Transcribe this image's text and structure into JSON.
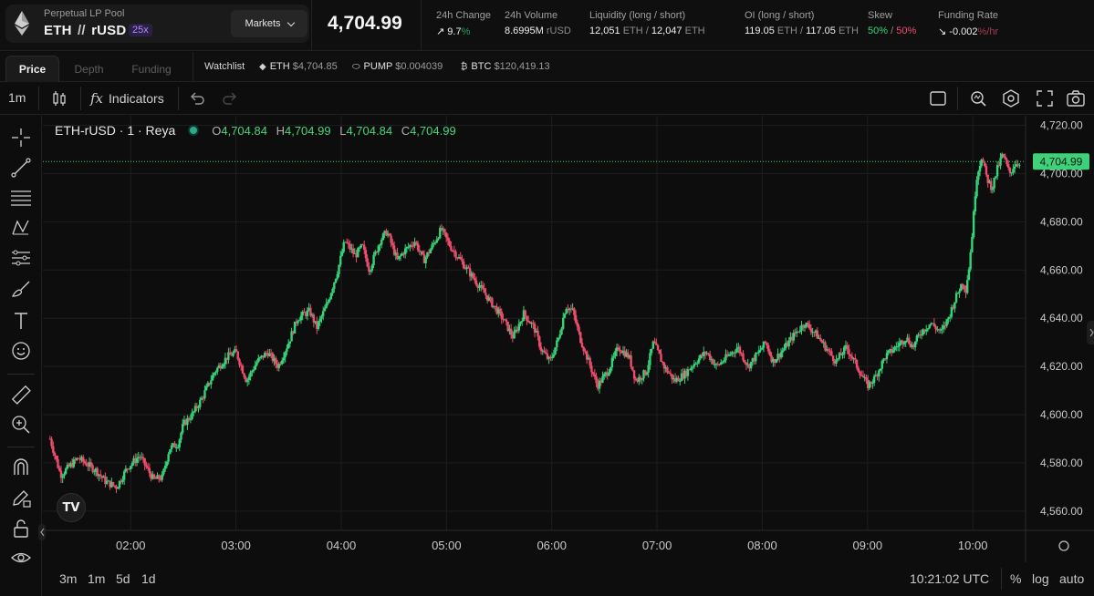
{
  "header": {
    "pool_label": "Perpetual LP Pool",
    "base": "ETH",
    "separator": "//",
    "quote": "rUSD",
    "leverage": "25x",
    "markets_label": "Markets",
    "last_price": "4,704.99",
    "stats": {
      "change_label": "24h Change",
      "change_arrow": "↗",
      "change_value": "9.7",
      "change_unit": "%",
      "volume_label": "24h Volume",
      "volume_value": "8.6995M",
      "volume_unit": "rUSD",
      "liquidity_label": "Liquidity (long / short)",
      "liquidity_long": "12,051",
      "liquidity_long_unit": "ETH",
      "liquidity_sep": "/",
      "liquidity_short": "12,047",
      "liquidity_short_unit": "ETH",
      "oi_label": "OI (long / short)",
      "oi_long": "119.05",
      "oi_long_unit": "ETH",
      "oi_sep": "/",
      "oi_short": "117.05",
      "oi_short_unit": "ETH",
      "skew_label": "Skew",
      "skew_long": "50%",
      "skew_sep": "/",
      "skew_short": "50%",
      "funding_label": "Funding Rate",
      "funding_arrow": "↘",
      "funding_value": "-0.002",
      "funding_unit": "%/hr"
    }
  },
  "tabs": [
    "Price",
    "Depth",
    "Funding"
  ],
  "watchlist": {
    "title": "Watchlist",
    "items": [
      {
        "symbol": "ETH",
        "price": "$4,704.85"
      },
      {
        "symbol": "PUMP",
        "price": "$0.004039"
      },
      {
        "symbol": "BTC",
        "price": "$120,419.13"
      }
    ]
  },
  "toolbar": {
    "interval": "1m",
    "indicators_label": "Indicators",
    "fx_label": "fx"
  },
  "chart_legend": {
    "title": "ETH-rUSD · 1 · Reya",
    "open_key": "O",
    "open": "4,704.84",
    "high_key": "H",
    "high": "4,704.99",
    "low_key": "L",
    "low": "4,704.84",
    "close_key": "C",
    "close": "4,704.99"
  },
  "tv_logo": "TV",
  "bottom_bar": {
    "ranges": [
      "3m",
      "1m",
      "5d",
      "1d"
    ],
    "time_utc": "10:21:02 UTC",
    "percent": "%",
    "log": "log",
    "auto": "auto"
  },
  "colors": {
    "up": "#34d47a",
    "down": "#ef4d6d",
    "price_line": "#3fd17a",
    "price_tag_bg": "#3fd17a",
    "accent_purple": "#b48cff"
  },
  "chart_data": {
    "type": "candlestick",
    "symbol": "ETH-rUSD",
    "interval": "1",
    "ylim": [
      4552,
      4724
    ],
    "y_ticks": [
      4560,
      4580,
      4600,
      4620,
      4640,
      4660,
      4680,
      4700,
      4720
    ],
    "y_tick_labels": [
      "4,560.00",
      "4,580.00",
      "4,600.00",
      "4,620.00",
      "4,640.00",
      "4,660.00",
      "4,680.00",
      "4,700.00",
      "4,720.00"
    ],
    "x_tick_labels": [
      "02:00",
      "03:00",
      "04:00",
      "05:00",
      "06:00",
      "07:00",
      "08:00",
      "09:00",
      "10:00"
    ],
    "x_tick_minutes": [
      120,
      180,
      240,
      300,
      360,
      420,
      480,
      540,
      600
    ],
    "x_range_minutes": [
      72,
      628
    ],
    "current_price": 4704.99,
    "current_price_label": "4,704.99",
    "close_path": [
      [
        74,
        4590
      ],
      [
        80,
        4575
      ],
      [
        90,
        4582
      ],
      [
        100,
        4577
      ],
      [
        106,
        4572
      ],
      [
        112,
        4570
      ],
      [
        118,
        4578
      ],
      [
        125,
        4583
      ],
      [
        133,
        4573
      ],
      [
        138,
        4574
      ],
      [
        142,
        4586
      ],
      [
        147,
        4588
      ],
      [
        150,
        4596
      ],
      [
        155,
        4600
      ],
      [
        160,
        4606
      ],
      [
        168,
        4618
      ],
      [
        175,
        4624
      ],
      [
        180,
        4626
      ],
      [
        186,
        4614
      ],
      [
        192,
        4622
      ],
      [
        198,
        4626
      ],
      [
        204,
        4620
      ],
      [
        210,
        4630
      ],
      [
        215,
        4640
      ],
      [
        222,
        4643
      ],
      [
        226,
        4636
      ],
      [
        232,
        4646
      ],
      [
        238,
        4660
      ],
      [
        242,
        4672
      ],
      [
        248,
        4666
      ],
      [
        252,
        4670
      ],
      [
        256,
        4660
      ],
      [
        262,
        4672
      ],
      [
        266,
        4676
      ],
      [
        272,
        4664
      ],
      [
        276,
        4668
      ],
      [
        282,
        4672
      ],
      [
        287,
        4664
      ],
      [
        292,
        4670
      ],
      [
        297,
        4677
      ],
      [
        302,
        4670
      ],
      [
        308,
        4664
      ],
      [
        314,
        4658
      ],
      [
        320,
        4652
      ],
      [
        326,
        4646
      ],
      [
        332,
        4640
      ],
      [
        338,
        4632
      ],
      [
        344,
        4642
      ],
      [
        350,
        4636
      ],
      [
        354,
        4627
      ],
      [
        359,
        4622
      ],
      [
        364,
        4632
      ],
      [
        368,
        4645
      ],
      [
        372,
        4643
      ],
      [
        376,
        4632
      ],
      [
        381,
        4622
      ],
      [
        386,
        4612
      ],
      [
        392,
        4618
      ],
      [
        398,
        4628
      ],
      [
        404,
        4624
      ],
      [
        408,
        4614
      ],
      [
        414,
        4618
      ],
      [
        418,
        4630
      ],
      [
        424,
        4620
      ],
      [
        430,
        4614
      ],
      [
        436,
        4617
      ],
      [
        442,
        4622
      ],
      [
        448,
        4626
      ],
      [
        454,
        4620
      ],
      [
        460,
        4624
      ],
      [
        466,
        4628
      ],
      [
        472,
        4620
      ],
      [
        478,
        4626
      ],
      [
        482,
        4630
      ],
      [
        486,
        4622
      ],
      [
        492,
        4627
      ],
      [
        498,
        4633
      ],
      [
        504,
        4638
      ],
      [
        510,
        4634
      ],
      [
        516,
        4628
      ],
      [
        522,
        4622
      ],
      [
        528,
        4628
      ],
      [
        534,
        4620
      ],
      [
        540,
        4612
      ],
      [
        544,
        4615
      ],
      [
        550,
        4624
      ],
      [
        556,
        4628
      ],
      [
        562,
        4632
      ],
      [
        566,
        4628
      ],
      [
        570,
        4634
      ],
      [
        576,
        4638
      ],
      [
        582,
        4634
      ],
      [
        586,
        4640
      ],
      [
        590,
        4648
      ],
      [
        594,
        4655
      ],
      [
        596,
        4652
      ],
      [
        598,
        4662
      ],
      [
        600,
        4678
      ],
      [
        602,
        4698
      ],
      [
        605,
        4707
      ],
      [
        608,
        4698
      ],
      [
        611,
        4694
      ],
      [
        614,
        4702
      ],
      [
        617,
        4708
      ],
      [
        621,
        4700
      ],
      [
        624,
        4704
      ],
      [
        627,
        4705
      ]
    ]
  }
}
